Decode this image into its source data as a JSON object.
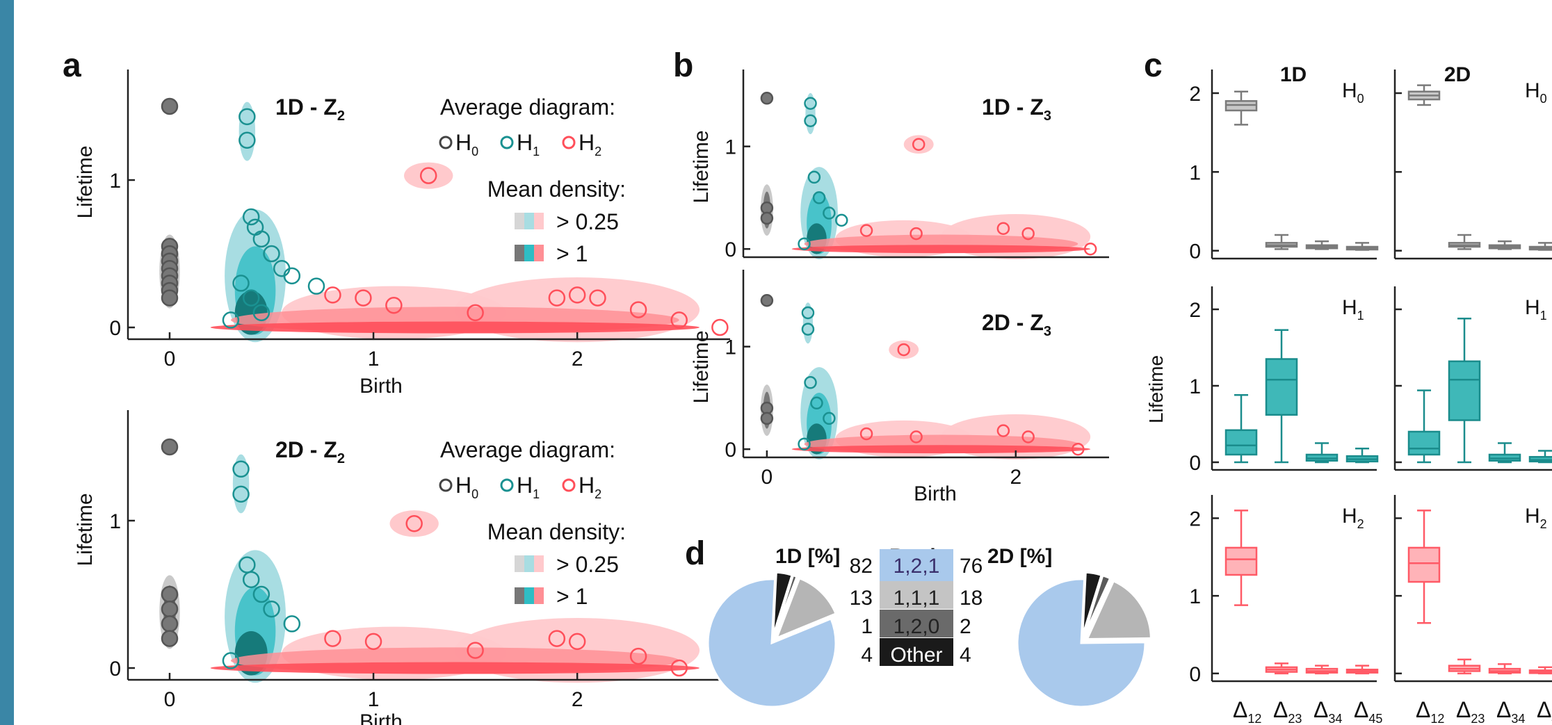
{
  "colors": {
    "sidebar": "#3a86a6",
    "h0": "#555555",
    "h1": "#1a9191",
    "h2": "#ff4f5a",
    "h0_light": "#c9c9c9",
    "h1_light": "#a8dde2",
    "h2_light": "#ffc9cc",
    "pie_main": "#a9c9ec",
    "pie_gray": "#b5b5b5",
    "pie_dark": "#5a5a5a",
    "pie_black": "#1a1a1a"
  },
  "panel_a": {
    "letter": "a",
    "top": {
      "title": "1D - Z",
      "title_sub": "2"
    },
    "bottom": {
      "title": "2D - Z",
      "title_sub": "2"
    },
    "ylabel": "Lifetime",
    "xlabel": "Birth",
    "legend_avg": "Average diagram:",
    "legend_h0": "H",
    "legend_h1": "H",
    "legend_h2": "H",
    "sub0": "0",
    "sub1": "1",
    "sub2": "2",
    "legend_density": "Mean density:",
    "density_low": "> 0.25",
    "density_high": "> 1"
  },
  "panel_b": {
    "letter": "b",
    "top": {
      "title": "1D - Z",
      "title_sub": "3"
    },
    "bottom": {
      "title": "2D - Z",
      "title_sub": "3"
    },
    "ylabel": "Lifetime",
    "xlabel": "Birth"
  },
  "panel_c": {
    "letter": "c",
    "col1": "1D",
    "col2": "2D",
    "ylabel": "Lifetime",
    "row_labels": [
      "H",
      "H",
      "H"
    ],
    "row_subs": [
      "0",
      "1",
      "2"
    ],
    "xticks": [
      {
        "d": "Δ",
        "s": "12"
      },
      {
        "d": "Δ",
        "s": "23"
      },
      {
        "d": "Δ",
        "s": "34"
      },
      {
        "d": "Δ",
        "s": "45"
      }
    ]
  },
  "panel_d": {
    "letter": "d",
    "col_1d": "1D [%]",
    "col_betti": "Betti",
    "col_2d": "2D [%]",
    "rows": [
      {
        "betti": "1,2,1",
        "p1d": "82",
        "p2d": "76"
      },
      {
        "betti": "1,1,1",
        "p1d": "13",
        "p2d": "18"
      },
      {
        "betti": "1,2,0",
        "p1d": "1",
        "p2d": "2"
      },
      {
        "betti": "Other",
        "p1d": "4",
        "p2d": "4"
      }
    ]
  },
  "chart_data": [
    {
      "type": "scatter",
      "panel": "a-top",
      "title": "1D - Z2",
      "xlabel": "Birth",
      "ylabel": "Lifetime",
      "xlim": [
        -0.15,
        2.75
      ],
      "ylim": [
        -0.08,
        1.75
      ],
      "xticks": [
        0,
        1,
        2
      ],
      "yticks": [
        0,
        1
      ],
      "legend": "top-right",
      "series": [
        {
          "name": "H0",
          "points": [
            [
              0,
              1.5
            ],
            [
              0,
              0.55
            ],
            [
              0,
              0.5
            ],
            [
              0,
              0.45
            ],
            [
              0,
              0.4
            ],
            [
              0,
              0.35
            ],
            [
              0,
              0.3
            ],
            [
              0,
              0.25
            ],
            [
              0,
              0.2
            ]
          ]
        },
        {
          "name": "H1",
          "points": [
            [
              0.38,
              1.43
            ],
            [
              0.38,
              1.27
            ],
            [
              0.4,
              0.75
            ],
            [
              0.42,
              0.68
            ],
            [
              0.45,
              0.6
            ],
            [
              0.5,
              0.5
            ],
            [
              0.55,
              0.4
            ],
            [
              0.6,
              0.35
            ],
            [
              0.72,
              0.28
            ],
            [
              0.35,
              0.3
            ],
            [
              0.4,
              0.2
            ],
            [
              0.45,
              0.1
            ],
            [
              0.3,
              0.05
            ]
          ]
        },
        {
          "name": "H2",
          "points": [
            [
              1.27,
              1.03
            ],
            [
              0.8,
              0.22
            ],
            [
              0.95,
              0.2
            ],
            [
              1.1,
              0.15
            ],
            [
              1.5,
              0.1
            ],
            [
              1.9,
              0.2
            ],
            [
              2.0,
              0.22
            ],
            [
              2.1,
              0.2
            ],
            [
              2.3,
              0.12
            ],
            [
              2.5,
              0.05
            ],
            [
              2.7,
              0.0
            ]
          ]
        }
      ]
    },
    {
      "type": "scatter",
      "panel": "a-bottom",
      "title": "2D - Z2",
      "xlabel": "Birth",
      "ylabel": "Lifetime",
      "xlim": [
        -0.15,
        2.75
      ],
      "ylim": [
        -0.08,
        1.75
      ],
      "xticks": [
        0,
        1,
        2
      ],
      "yticks": [
        0,
        1
      ],
      "legend": "top-right",
      "series": [
        {
          "name": "H0",
          "points": [
            [
              0,
              1.5
            ],
            [
              0,
              0.5
            ],
            [
              0,
              0.4
            ],
            [
              0,
              0.3
            ],
            [
              0,
              0.2
            ]
          ]
        },
        {
          "name": "H1",
          "points": [
            [
              0.35,
              1.35
            ],
            [
              0.35,
              1.18
            ],
            [
              0.38,
              0.7
            ],
            [
              0.4,
              0.6
            ],
            [
              0.45,
              0.5
            ],
            [
              0.5,
              0.4
            ],
            [
              0.6,
              0.3
            ],
            [
              0.3,
              0.05
            ]
          ]
        },
        {
          "name": "H2",
          "points": [
            [
              1.2,
              0.98
            ],
            [
              0.8,
              0.2
            ],
            [
              1.0,
              0.18
            ],
            [
              1.5,
              0.12
            ],
            [
              1.9,
              0.2
            ],
            [
              2.0,
              0.18
            ],
            [
              2.3,
              0.08
            ],
            [
              2.5,
              0.0
            ]
          ]
        }
      ]
    },
    {
      "type": "scatter",
      "panel": "b-top",
      "title": "1D - Z3",
      "xlabel": "",
      "ylabel": "Lifetime",
      "xlim": [
        -0.1,
        2.75
      ],
      "ylim": [
        -0.08,
        1.75
      ],
      "xticks": [],
      "yticks": [
        0,
        1
      ],
      "series": [
        {
          "name": "H0",
          "points": [
            [
              0,
              1.47
            ],
            [
              0,
              0.4
            ],
            [
              0,
              0.3
            ]
          ]
        },
        {
          "name": "H1",
          "points": [
            [
              0.35,
              1.42
            ],
            [
              0.35,
              1.25
            ],
            [
              0.38,
              0.7
            ],
            [
              0.42,
              0.5
            ],
            [
              0.5,
              0.35
            ],
            [
              0.6,
              0.28
            ],
            [
              0.3,
              0.05
            ]
          ]
        },
        {
          "name": "H2",
          "points": [
            [
              1.22,
              1.02
            ],
            [
              0.8,
              0.18
            ],
            [
              1.2,
              0.15
            ],
            [
              1.9,
              0.2
            ],
            [
              2.1,
              0.15
            ],
            [
              2.6,
              0.0
            ]
          ]
        }
      ]
    },
    {
      "type": "scatter",
      "panel": "b-bottom",
      "title": "2D - Z3",
      "xlabel": "Birth",
      "ylabel": "Lifetime",
      "xlim": [
        -0.1,
        2.75
      ],
      "ylim": [
        -0.08,
        1.75
      ],
      "xticks": [
        0,
        2
      ],
      "yticks": [
        0,
        1
      ],
      "series": [
        {
          "name": "H0",
          "points": [
            [
              0,
              1.45
            ],
            [
              0,
              0.4
            ],
            [
              0,
              0.3
            ]
          ]
        },
        {
          "name": "H1",
          "points": [
            [
              0.33,
              1.33
            ],
            [
              0.33,
              1.17
            ],
            [
              0.35,
              0.65
            ],
            [
              0.4,
              0.45
            ],
            [
              0.5,
              0.3
            ],
            [
              0.3,
              0.05
            ]
          ]
        },
        {
          "name": "H2",
          "points": [
            [
              1.1,
              0.97
            ],
            [
              0.8,
              0.15
            ],
            [
              1.2,
              0.12
            ],
            [
              1.9,
              0.18
            ],
            [
              2.1,
              0.12
            ],
            [
              2.5,
              0.0
            ]
          ]
        }
      ]
    },
    {
      "type": "box",
      "panel": "c",
      "ylabel": "Lifetime",
      "ylim": [
        -0.1,
        2.3
      ],
      "yticks": [
        0,
        1,
        2
      ],
      "categories": [
        "Δ12",
        "Δ23",
        "Δ34",
        "Δ45"
      ],
      "groups": [
        {
          "name": "1D H0",
          "boxes": [
            {
              "min": 1.6,
              "q1": 1.78,
              "med": 1.85,
              "q3": 1.9,
              "max": 2.02
            },
            {
              "min": 0.02,
              "q1": 0.05,
              "med": 0.07,
              "q3": 0.1,
              "max": 0.2
            },
            {
              "min": 0.02,
              "q1": 0.03,
              "med": 0.05,
              "q3": 0.07,
              "max": 0.12
            },
            {
              "min": 0.01,
              "q1": 0.02,
              "med": 0.03,
              "q3": 0.05,
              "max": 0.1
            }
          ]
        },
        {
          "name": "2D H0",
          "boxes": [
            {
              "min": 1.85,
              "q1": 1.92,
              "med": 1.97,
              "q3": 2.02,
              "max": 2.1
            },
            {
              "min": 0.02,
              "q1": 0.05,
              "med": 0.07,
              "q3": 0.1,
              "max": 0.2
            },
            {
              "min": 0.02,
              "q1": 0.03,
              "med": 0.05,
              "q3": 0.07,
              "max": 0.12
            },
            {
              "min": 0.01,
              "q1": 0.02,
              "med": 0.03,
              "q3": 0.05,
              "max": 0.1
            }
          ]
        },
        {
          "name": "1D H1",
          "boxes": [
            {
              "min": 0.0,
              "q1": 0.1,
              "med": 0.22,
              "q3": 0.42,
              "max": 0.88
            },
            {
              "min": 0.0,
              "q1": 0.62,
              "med": 1.08,
              "q3": 1.35,
              "max": 1.73
            },
            {
              "min": 0.0,
              "q1": 0.02,
              "med": 0.05,
              "q3": 0.1,
              "max": 0.25
            },
            {
              "min": 0.0,
              "q1": 0.01,
              "med": 0.04,
              "q3": 0.08,
              "max": 0.18
            }
          ]
        },
        {
          "name": "2D H1",
          "boxes": [
            {
              "min": 0.0,
              "q1": 0.1,
              "med": 0.18,
              "q3": 0.4,
              "max": 0.94
            },
            {
              "min": 0.0,
              "q1": 0.55,
              "med": 1.08,
              "q3": 1.32,
              "max": 1.88
            },
            {
              "min": 0.0,
              "q1": 0.02,
              "med": 0.05,
              "q3": 0.1,
              "max": 0.25
            },
            {
              "min": 0.0,
              "q1": 0.01,
              "med": 0.03,
              "q3": 0.07,
              "max": 0.15
            }
          ]
        },
        {
          "name": "1D H2",
          "boxes": [
            {
              "min": 0.88,
              "q1": 1.27,
              "med": 1.47,
              "q3": 1.62,
              "max": 2.1
            },
            {
              "min": 0.0,
              "q1": 0.02,
              "med": 0.05,
              "q3": 0.08,
              "max": 0.13
            },
            {
              "min": 0.0,
              "q1": 0.01,
              "med": 0.03,
              "q3": 0.06,
              "max": 0.1
            },
            {
              "min": 0.0,
              "q1": 0.01,
              "med": 0.03,
              "q3": 0.05,
              "max": 0.1
            }
          ]
        },
        {
          "name": "2D H2",
          "boxes": [
            {
              "min": 0.65,
              "q1": 1.18,
              "med": 1.42,
              "q3": 1.62,
              "max": 2.1
            },
            {
              "min": 0.0,
              "q1": 0.03,
              "med": 0.06,
              "q3": 0.1,
              "max": 0.18
            },
            {
              "min": 0.0,
              "q1": 0.01,
              "med": 0.03,
              "q3": 0.06,
              "max": 0.12
            },
            {
              "min": 0.0,
              "q1": 0.01,
              "med": 0.02,
              "q3": 0.04,
              "max": 0.08
            }
          ]
        }
      ]
    },
    {
      "type": "pie",
      "panel": "d-1D",
      "labels": [
        "1,2,1",
        "1,1,1",
        "1,2,0",
        "Other"
      ],
      "values": [
        82,
        13,
        1,
        4
      ]
    },
    {
      "type": "pie",
      "panel": "d-2D",
      "labels": [
        "1,2,1",
        "1,1,1",
        "1,2,0",
        "Other"
      ],
      "values": [
        76,
        18,
        2,
        4
      ]
    }
  ]
}
